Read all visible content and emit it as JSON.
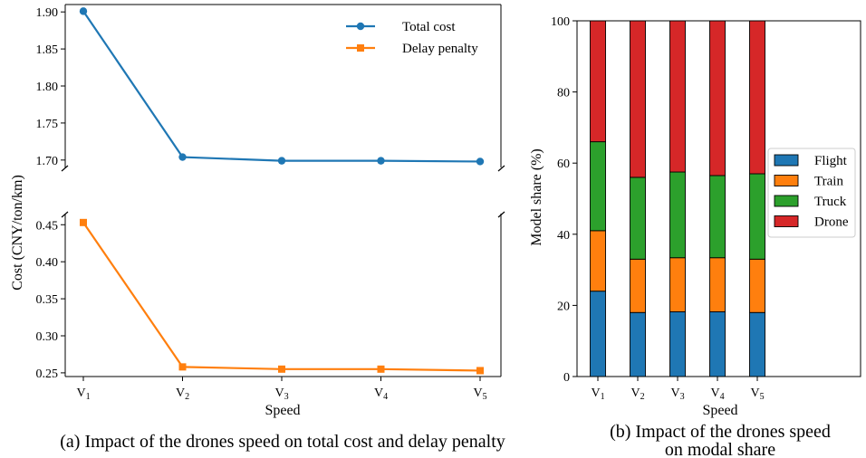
{
  "chart_data": [
    {
      "type": "line",
      "caption": "(a) Impact of the drones speed on total cost and delay penalty",
      "xlabel": "Speed",
      "ylabel": "Cost (CNY/ton/km)",
      "categories": [
        "V1",
        "V2",
        "V3",
        "V4",
        "V5"
      ],
      "category_labels": [
        {
          "base": "V",
          "sub": "1"
        },
        {
          "base": "V",
          "sub": "2"
        },
        {
          "base": "V",
          "sub": "3"
        },
        {
          "base": "V",
          "sub": "4"
        },
        {
          "base": "V",
          "sub": "5"
        }
      ],
      "broken_axis": true,
      "panels": [
        {
          "series": [
            "Total cost"
          ],
          "ylim": [
            1.69,
            1.91
          ],
          "yticks": [
            "1.70",
            "1.75",
            "1.80",
            "1.85",
            "1.90"
          ]
        },
        {
          "series": [
            "Delay penalty"
          ],
          "ylim": [
            0.245,
            0.465
          ],
          "yticks": [
            "0.25",
            "0.30",
            "0.35",
            "0.40",
            "0.45"
          ]
        }
      ],
      "series": [
        {
          "name": "Total cost",
          "values": [
            1.901,
            1.704,
            1.699,
            1.699,
            1.698
          ],
          "color": "#1f77b4",
          "marker": "circle"
        },
        {
          "name": "Delay penalty",
          "values": [
            0.453,
            0.258,
            0.255,
            0.255,
            0.253
          ],
          "color": "#ff7f0e",
          "marker": "square"
        }
      ],
      "legend": "top-right"
    },
    {
      "type": "bar",
      "stacked": true,
      "caption_lines": [
        "(b) Impact of the drones speed",
        "on modal share"
      ],
      "xlabel": "Speed",
      "ylabel": "Model share (%)",
      "categories": [
        "V1",
        "V2",
        "V3",
        "V4",
        "V5"
      ],
      "category_labels": [
        {
          "base": "V",
          "sub": "1"
        },
        {
          "base": "V",
          "sub": "2"
        },
        {
          "base": "V",
          "sub": "3"
        },
        {
          "base": "V",
          "sub": "4"
        },
        {
          "base": "V",
          "sub": "5"
        }
      ],
      "ylim": [
        0,
        100
      ],
      "yticks": [
        "0",
        "20",
        "40",
        "60",
        "80",
        "100"
      ],
      "series": [
        {
          "name": "Flight",
          "values": [
            24,
            18,
            18.2,
            18.2,
            18
          ],
          "color": "#1f77b4"
        },
        {
          "name": "Train",
          "values": [
            17,
            15,
            15.2,
            15.2,
            15
          ],
          "color": "#ff7f0e"
        },
        {
          "name": "Truck",
          "values": [
            25,
            23,
            24.1,
            23.1,
            24
          ],
          "color": "#2ca02c"
        },
        {
          "name": "Drone",
          "values": [
            34,
            44,
            42.5,
            43.5,
            43
          ],
          "color": "#d62728"
        }
      ],
      "legend": "center-right"
    }
  ]
}
